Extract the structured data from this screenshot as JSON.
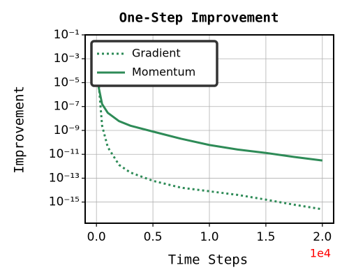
{
  "chart_data": {
    "type": "line",
    "title": "One-Step Improvement",
    "x_label": "Time Steps",
    "y_label": "Improvement",
    "x_offset_label": "1e4",
    "x_offset_color": "#ff0000",
    "y_scale": "log",
    "grid": true,
    "legend_position": "upper-left",
    "x": [
      0,
      0.02,
      0.05,
      0.1,
      0.2,
      0.3,
      0.5,
      0.75,
      1.0,
      1.25,
      1.5,
      1.75,
      2.0
    ],
    "series": [
      {
        "name": "Gradient",
        "color": "#2e8b57",
        "line_style": "dotted",
        "values": [
          0.025,
          8e-06,
          2.5e-09,
          4e-11,
          1.3e-12,
          3e-13,
          6e-14,
          1.6e-14,
          8e-15,
          4e-15,
          1.6e-15,
          6e-16,
          2.5e-16
        ]
      },
      {
        "name": "Momentum",
        "color": "#2e8b57",
        "line_style": "solid",
        "values": [
          0.025,
          4e-06,
          1.6e-07,
          3e-08,
          6e-09,
          2.5e-09,
          8e-10,
          2e-10,
          6e-11,
          2.5e-11,
          1.3e-11,
          6e-12,
          3e-12
        ]
      }
    ],
    "xlim": [
      -0.1,
      2.1
    ],
    "xticks": [
      {
        "value": 0,
        "label": "0.0"
      },
      0.5,
      {
        "value": 1,
        "label": "1.0"
      },
      1.5,
      {
        "value": 2,
        "label": "2.0"
      }
    ],
    "ylim": [
      1.7e-17,
      0.1
    ],
    "yticks": [
      {
        "value": 0.1,
        "label": "10⁻¹"
      },
      {
        "value": 0.001,
        "label": "10⁻³"
      },
      {
        "value": 1e-05,
        "label": "10⁻⁵"
      },
      {
        "value": 1e-07,
        "label": "10⁻⁷"
      },
      {
        "value": 1e-09,
        "label": "10⁻⁹"
      },
      {
        "value": 1e-11,
        "label": "10⁻¹¹"
      },
      {
        "value": 1e-13,
        "label": "10⁻¹³"
      },
      {
        "value": 1e-15,
        "label": "10⁻¹⁵"
      }
    ]
  }
}
